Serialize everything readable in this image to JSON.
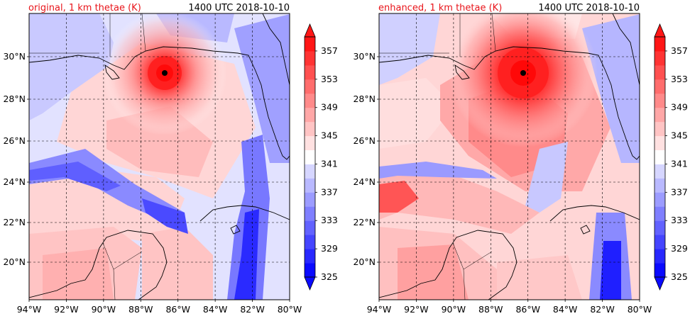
{
  "panels": [
    {
      "title_left": "original, 1 km thetae (K)",
      "title_right": "1400 UTC 2018-10-10",
      "title_color": "#e8141a"
    },
    {
      "title_left": "enhanced, 1 km thetae (K)",
      "title_right": "1400 UTC 2018-10-10",
      "title_color": "#e8141a"
    }
  ],
  "map_data": {
    "lon_range": [
      -94,
      -80
    ],
    "lat_range": [
      18,
      32
    ],
    "lon_ticks": [
      "94°W",
      "92°W",
      "90°W",
      "88°W",
      "86°W",
      "84°W",
      "82°W",
      "80°W"
    ],
    "lat_ticks": [
      "20°N",
      "22°N",
      "24°N",
      "26°N",
      "28°N",
      "30°N"
    ],
    "gridlines": "dashed",
    "hurricane_center_marker": "black-dot"
  },
  "colorbar": {
    "ticks": [
      "325",
      "329",
      "333",
      "337",
      "341",
      "345",
      "349",
      "353",
      "357"
    ],
    "range": [
      325,
      359
    ],
    "extend": "both",
    "colors": [
      "#0a0aff",
      "#2828ff",
      "#4545ff",
      "#6262ff",
      "#7f7fff",
      "#9c9cff",
      "#b9b9ff",
      "#d6d6ff",
      "#ffffff",
      "#ffe1e1",
      "#ffc4c4",
      "#ffa7a7",
      "#ff8a8a",
      "#ff6d6d",
      "#ff5050",
      "#ff3333",
      "#ff1616"
    ]
  }
}
